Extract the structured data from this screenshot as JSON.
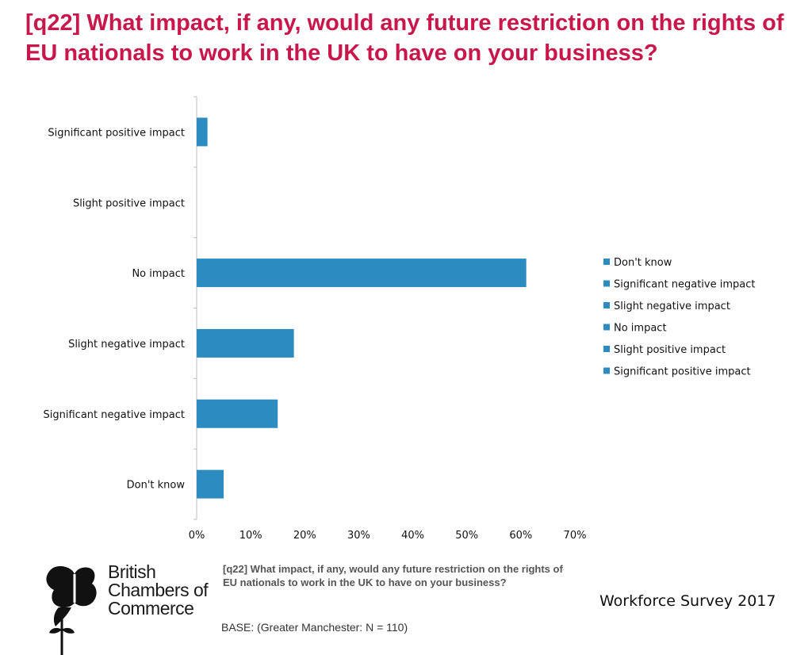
{
  "title": "[q22] What impact, if any, would any future restriction on the rights of EU nationals to work in the UK to have on your business?",
  "chart_data": {
    "type": "bar",
    "orientation": "horizontal",
    "categories": [
      "Significant positive impact",
      "Slight positive impact",
      "No impact",
      "Slight negative impact",
      "Significant negative impact",
      "Don't know"
    ],
    "values": [
      2,
      0,
      61,
      18,
      15,
      5
    ],
    "value_unit": "%",
    "xlim": [
      0,
      70
    ],
    "xticks": [
      "0%",
      "10%",
      "20%",
      "30%",
      "40%",
      "50%",
      "60%",
      "70%"
    ],
    "xtick_values": [
      0,
      10,
      20,
      30,
      40,
      50,
      60,
      70
    ],
    "grid": false,
    "legend_position": "right",
    "legend": [
      "Don't know",
      "Significant negative impact",
      "Slight negative impact",
      "No impact",
      "Slight positive impact",
      "Significant positive impact"
    ],
    "bar_color": "#2c8cc0"
  },
  "footer": {
    "question": "[q22] What impact, if any, would any future restriction on the rights of EU nationals to work in the UK to have on your business?",
    "base": "BASE: (Greater Manchester: N = 110)",
    "survey": "Workforce Survey 2017"
  },
  "logo": {
    "line1": "British",
    "line2": "Chambers of",
    "line3": "Commerce"
  }
}
